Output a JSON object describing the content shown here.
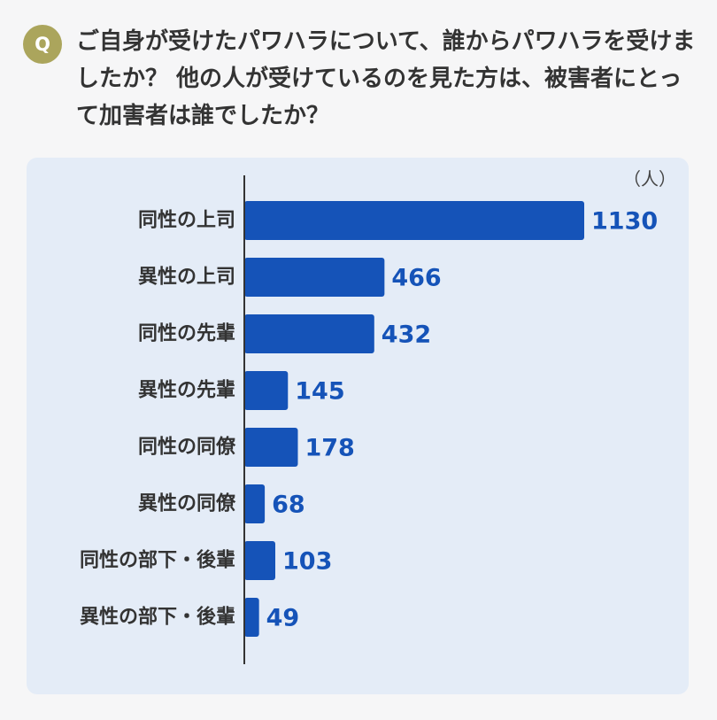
{
  "header": {
    "badge": "Q",
    "question": "ご自身が受けたパワハラについて、誰からパワハラを受けましたか？ 他の人が受けているのを見た方は、被害者にとって加害者は誰でしたか？"
  },
  "colors": {
    "bar": "#1553b8",
    "value_text": "#1553b8",
    "panel_bg": "#e4ecf7",
    "badge_bg": "#aba55c"
  },
  "chart_data": {
    "type": "bar",
    "orientation": "horizontal",
    "unit_label": "（人）",
    "categories": [
      "同性の上司",
      "異性の上司",
      "同性の先輩",
      "異性の先輩",
      "同性の同僚",
      "異性の同僚",
      "同性の部下・後輩",
      "異性の部下・後輩"
    ],
    "values": [
      1130,
      466,
      432,
      145,
      178,
      68,
      103,
      49
    ],
    "value_labels": [
      "1130",
      "466",
      "432",
      "145",
      "178",
      "68",
      "103",
      "49"
    ],
    "xlim": [
      0,
      1130
    ],
    "grid": false,
    "legend": "none"
  }
}
